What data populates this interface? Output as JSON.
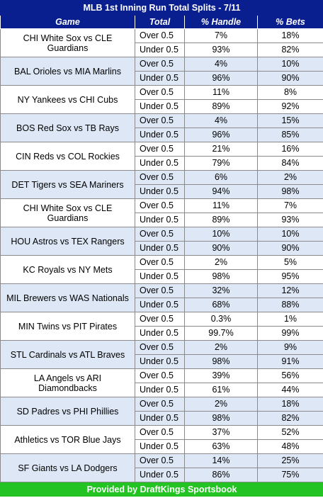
{
  "title": "MLB 1st Inning Run Total Splits - 7/11",
  "headers": {
    "game": "Game",
    "total": "Total",
    "handle": "% Handle",
    "bets": "% Bets"
  },
  "games": [
    {
      "game": "CHI White Sox vs CLE Guardians",
      "rows": [
        {
          "total": "Over 0.5",
          "handle": "7%",
          "bets": "18%"
        },
        {
          "total": "Under 0.5",
          "handle": "93%",
          "bets": "82%"
        }
      ]
    },
    {
      "game": "BAL Orioles vs MIA Marlins",
      "rows": [
        {
          "total": "Over 0.5",
          "handle": "4%",
          "bets": "10%"
        },
        {
          "total": "Under 0.5",
          "handle": "96%",
          "bets": "90%"
        }
      ]
    },
    {
      "game": "NY Yankees vs CHI Cubs",
      "rows": [
        {
          "total": "Over 0.5",
          "handle": "11%",
          "bets": "8%"
        },
        {
          "total": "Under 0.5",
          "handle": "89%",
          "bets": "92%"
        }
      ]
    },
    {
      "game": "BOS Red Sox vs TB Rays",
      "rows": [
        {
          "total": "Over 0.5",
          "handle": "4%",
          "bets": "15%"
        },
        {
          "total": "Under 0.5",
          "handle": "96%",
          "bets": "85%"
        }
      ]
    },
    {
      "game": "CIN Reds vs COL Rockies",
      "rows": [
        {
          "total": "Over 0.5",
          "handle": "21%",
          "bets": "16%"
        },
        {
          "total": "Under 0.5",
          "handle": "79%",
          "bets": "84%"
        }
      ]
    },
    {
      "game": "DET Tigers vs SEA Mariners",
      "rows": [
        {
          "total": "Over 0.5",
          "handle": "6%",
          "bets": "2%"
        },
        {
          "total": "Under 0.5",
          "handle": "94%",
          "bets": "98%"
        }
      ]
    },
    {
      "game": "CHI White Sox vs CLE Guardians",
      "rows": [
        {
          "total": "Over 0.5",
          "handle": "11%",
          "bets": "7%"
        },
        {
          "total": "Under 0.5",
          "handle": "89%",
          "bets": "93%"
        }
      ]
    },
    {
      "game": "HOU Astros vs TEX Rangers",
      "rows": [
        {
          "total": "Over 0.5",
          "handle": "10%",
          "bets": "10%"
        },
        {
          "total": "Under 0.5",
          "handle": "90%",
          "bets": "90%"
        }
      ]
    },
    {
      "game": "KC Royals vs NY Mets",
      "rows": [
        {
          "total": "Over 0.5",
          "handle": "2%",
          "bets": "5%"
        },
        {
          "total": "Under 0.5",
          "handle": "98%",
          "bets": "95%"
        }
      ]
    },
    {
      "game": "MIL Brewers vs WAS Nationals",
      "rows": [
        {
          "total": "Over 0.5",
          "handle": "32%",
          "bets": "12%"
        },
        {
          "total": "Under 0.5",
          "handle": "68%",
          "bets": "88%"
        }
      ]
    },
    {
      "game": "MIN Twins vs PIT Pirates",
      "rows": [
        {
          "total": "Over 0.5",
          "handle": "0.3%",
          "bets": "1%"
        },
        {
          "total": "Under 0.5",
          "handle": "99.7%",
          "bets": "99%"
        }
      ]
    },
    {
      "game": "STL Cardinals vs ATL Braves",
      "rows": [
        {
          "total": "Over 0.5",
          "handle": "2%",
          "bets": "9%"
        },
        {
          "total": "Under 0.5",
          "handle": "98%",
          "bets": "91%"
        }
      ]
    },
    {
      "game": "LA Angels vs ARI Diamondbacks",
      "rows": [
        {
          "total": "Over 0.5",
          "handle": "39%",
          "bets": "56%"
        },
        {
          "total": "Under 0.5",
          "handle": "61%",
          "bets": "44%"
        }
      ]
    },
    {
      "game": "SD Padres vs PHI Phillies",
      "rows": [
        {
          "total": "Over 0.5",
          "handle": "2%",
          "bets": "18%"
        },
        {
          "total": "Under 0.5",
          "handle": "98%",
          "bets": "82%"
        }
      ]
    },
    {
      "game": "Athletics vs TOR Blue Jays",
      "rows": [
        {
          "total": "Over 0.5",
          "handle": "37%",
          "bets": "52%"
        },
        {
          "total": "Under 0.5",
          "handle": "63%",
          "bets": "48%"
        }
      ]
    },
    {
      "game": "SF Giants vs LA Dodgers",
      "rows": [
        {
          "total": "Over 0.5",
          "handle": "14%",
          "bets": "25%"
        },
        {
          "total": "Under 0.5",
          "handle": "86%",
          "bets": "75%"
        }
      ]
    }
  ],
  "footer": "Provided by DraftKings Sportsbook",
  "colors": {
    "header_bg": "#0a1f8f",
    "band_blue": "#dde7f5",
    "band_white": "#ffffff",
    "footer_bg": "#22c322",
    "grid": "#8a8a8a"
  }
}
